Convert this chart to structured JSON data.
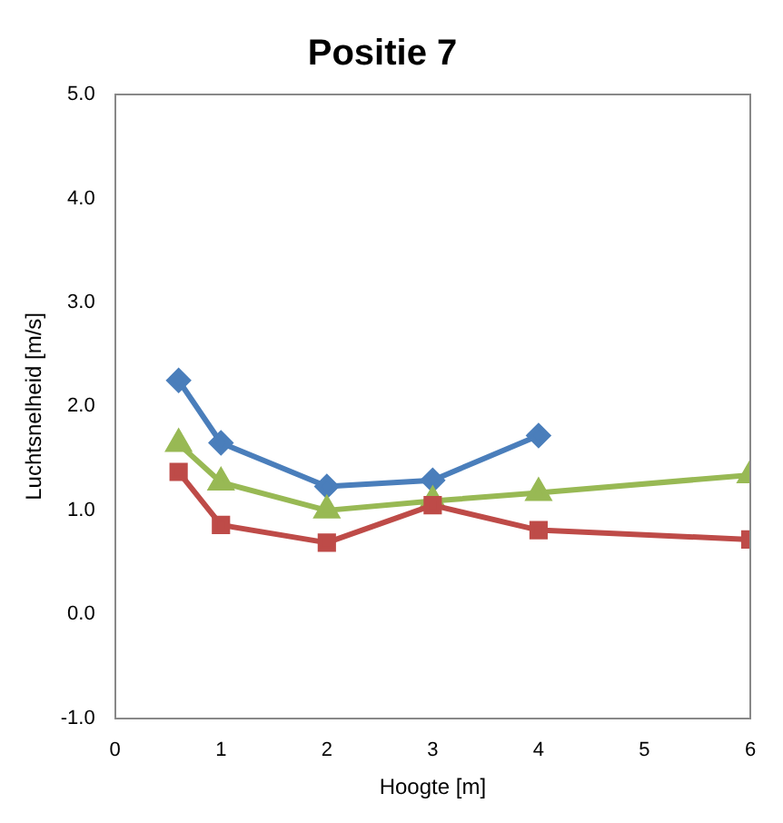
{
  "chart_data": {
    "type": "line",
    "title": "Positie 7",
    "xlabel": "Hoogte [m]",
    "ylabel": "Luchtsnelheid [m/s]",
    "xlim": [
      0,
      6
    ],
    "xticks": [
      0,
      1,
      2,
      3,
      4,
      5,
      6
    ],
    "ylim": [
      -1,
      5
    ],
    "yticks": [
      {
        "value": -1,
        "label": "-1.0"
      },
      {
        "value": 0,
        "label": "0.0"
      },
      {
        "value": 1,
        "label": "1.0"
      },
      {
        "value": 2,
        "label": "2.0"
      },
      {
        "value": 3,
        "label": "3.0"
      },
      {
        "value": 4,
        "label": "4.0"
      },
      {
        "value": 5,
        "label": "5.0"
      }
    ],
    "grid": false,
    "legend": false,
    "line_style": "solid",
    "series": [
      {
        "color": "#4a7ebb",
        "marker": "diamond",
        "x": [
          0.6,
          1,
          2,
          3,
          4
        ],
        "values": [
          2.25,
          1.65,
          1.23,
          1.29,
          1.72
        ]
      },
      {
        "color": "#98b954",
        "marker": "triangle",
        "x": [
          0.6,
          1,
          2,
          3,
          4,
          6
        ],
        "values": [
          1.64,
          1.27,
          1.0,
          1.09,
          1.17,
          1.34
        ]
      },
      {
        "color": "#be4b48",
        "marker": "square",
        "x": [
          0.6,
          1,
          2,
          3,
          4,
          6
        ],
        "values": [
          1.37,
          0.86,
          0.69,
          1.05,
          0.81,
          0.72
        ]
      }
    ]
  }
}
